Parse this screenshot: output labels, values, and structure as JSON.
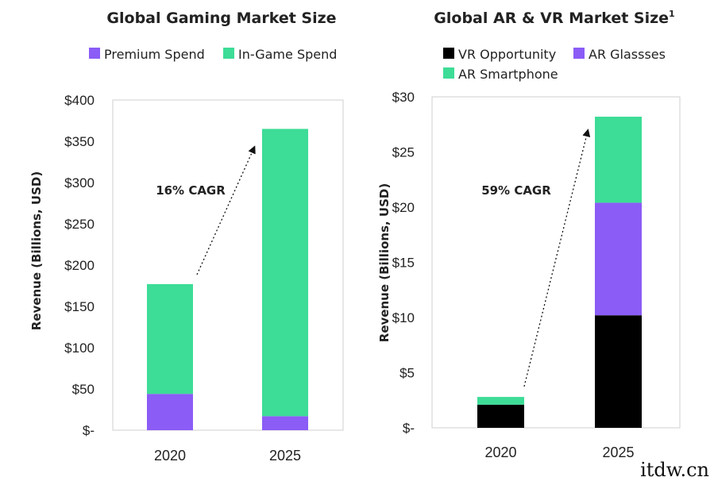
{
  "colors": {
    "premium": "#8b5cf6",
    "ingame": "#3ddc97",
    "vr": "#000000",
    "arglasses": "#8b5cf6",
    "arsmartphone": "#3ddc97"
  },
  "watermark": "itdw.cn",
  "chart_data": [
    {
      "type": "bar",
      "stacked": true,
      "title": "Global Gaming Market Size",
      "ylabel": "Revenue (Billions, USD)",
      "xlabel": "",
      "categories": [
        "2020",
        "2025"
      ],
      "ylim": [
        0,
        400
      ],
      "yticks": [
        "$-",
        "$50",
        "$100",
        "$150",
        "$200",
        "$250",
        "$300",
        "$350",
        "$400"
      ],
      "series": [
        {
          "name": "Premium Spend",
          "values": [
            44,
            17
          ],
          "color_key": "premium"
        },
        {
          "name": "In-Game Spend",
          "values": [
            133,
            348
          ],
          "color_key": "ingame"
        }
      ],
      "annotation": "16% CAGR"
    },
    {
      "type": "bar",
      "stacked": true,
      "title": "Global AR & VR Market Size",
      "title_sup": "1",
      "ylabel": "Revenue (Billions, USD)",
      "xlabel": "",
      "categories": [
        "2020",
        "2025"
      ],
      "ylim": [
        0,
        30
      ],
      "yticks": [
        "$-",
        "$5",
        "$10",
        "$15",
        "$20",
        "$25",
        "$30"
      ],
      "series": [
        {
          "name": "VR Opportunity",
          "values": [
            2.1,
            10.2
          ],
          "color_key": "vr"
        },
        {
          "name": "AR Glassses",
          "values": [
            0,
            10.2
          ],
          "color_key": "arglasses"
        },
        {
          "name": "AR Smartphone",
          "values": [
            0.7,
            7.8
          ],
          "color_key": "arsmartphone"
        }
      ],
      "annotation": "59% CAGR"
    }
  ]
}
